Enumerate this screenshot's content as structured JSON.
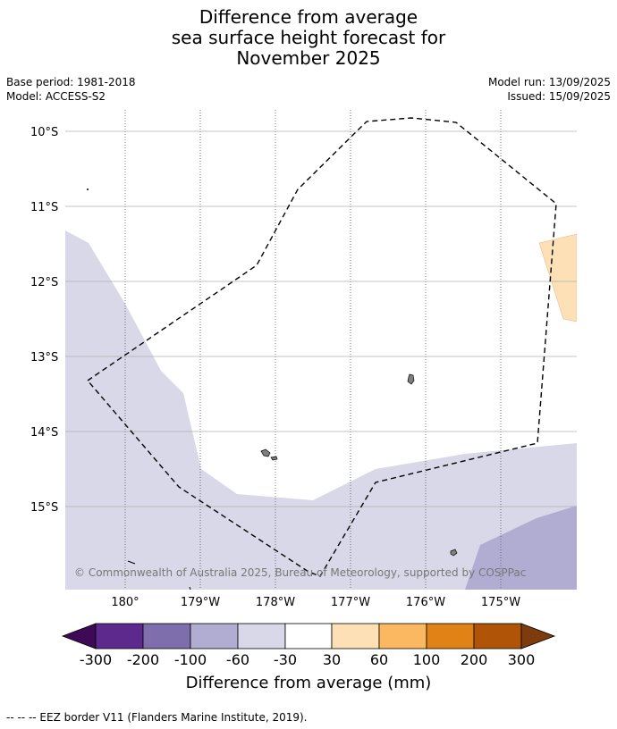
{
  "title": {
    "line1": "Difference from average",
    "line2": "sea surface height forecast for",
    "line3": "November 2025"
  },
  "meta": {
    "base_period": "Base period: 1981-2018",
    "model": "Model: ACCESS-S2",
    "model_run": "Model run: 13/09/2025",
    "issued": "Issued: 15/09/2025"
  },
  "map": {
    "lat_labels": [
      "10°S",
      "11°S",
      "12°S",
      "13°S",
      "14°S",
      "15°S"
    ],
    "lon_labels": [
      "180°",
      "179°W",
      "178°W",
      "177°W",
      "176°W",
      "175°W"
    ],
    "copyright": "© Commonwealth of Australia 2025, Bureau of Meteorology, supported by COSPPac",
    "colors": {
      "anomaly_-60_-30": "#d8d8e8",
      "anomaly_-100_-60": "#b1acd2",
      "anomaly_30_60": "#fde0b6",
      "land": "#808080",
      "eez_line": "#000000",
      "gridline_lat": "#b0b0b0",
      "gridline_lon": "#555555"
    }
  },
  "colorbar": {
    "tick_labels": [
      "-300",
      "-200",
      "-100",
      "-60",
      "-30",
      "30",
      "60",
      "100",
      "200",
      "300"
    ],
    "colors": [
      "#3f0a55",
      "#5b2a8c",
      "#7e6eab",
      "#b1acd2",
      "#d8d8e8",
      "#ffffff",
      "#fde0b6",
      "#fbb860",
      "#e08215",
      "#b05508",
      "#7e3b0c"
    ],
    "title": "Difference from average (mm)"
  },
  "footer": {
    "legend_text": "--  --  -- EEZ border V11 (Flanders Marine Institute, 2019)."
  }
}
